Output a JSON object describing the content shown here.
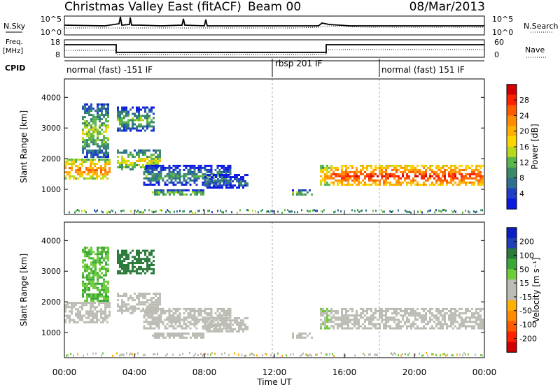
{
  "header": {
    "station": "Christmas Valley East (fitACF)",
    "beam": "Beam 00",
    "date": "08/Mar/2013"
  },
  "noise_panel": {
    "left_label": "N.Sky",
    "left_ticks": [
      "10^5",
      "10^0"
    ],
    "right_label": "N.Search",
    "right_ticks": [
      "10^5",
      "10^0"
    ]
  },
  "freq_panel": {
    "left_label_1": "Freq.",
    "left_label_2": "[MHz]",
    "left_ticks": [
      "18",
      "8"
    ],
    "right_label": "Nave",
    "right_ticks": [
      "60",
      "0"
    ]
  },
  "cpid": {
    "label": "CPID",
    "segments": [
      {
        "text": "normal (fast) -151 IF",
        "start_hour": 0
      },
      {
        "text": "rbsp 201 IF",
        "start_hour": 12
      },
      {
        "text": "normal (fast) 151 IF",
        "start_hour": 18
      }
    ]
  },
  "power_panel": {
    "ylabel": "Slant Range [km]",
    "cbar_label": "Power [dB]",
    "cbar_ticks": [
      "28",
      "24",
      "20",
      "16",
      "12",
      "8",
      "4"
    ],
    "cbar_colors": [
      "#d00000",
      "#ff2000",
      "#ff5a00",
      "#ff8c00",
      "#ffb000",
      "#ffd400",
      "#b8d81c",
      "#5ab64a",
      "#3a8a6a",
      "#2f6f8f",
      "#1e3fc8",
      "#0b18e0"
    ]
  },
  "velocity_panel": {
    "ylabel": "Slant Range [km]",
    "cbar_label": "Velocity [m s⁻¹]",
    "cbar_ticks": [
      "200",
      "100",
      "50",
      "15",
      "-15",
      "-50",
      "-100",
      "-200"
    ],
    "cbar_colors": [
      "#0a1ec8",
      "#1f3fb8",
      "#2a7a3a",
      "#3ca838",
      "#6ecb3a",
      "#bcbcb4",
      "#bcbcb4",
      "#ffb000",
      "#ff8c00",
      "#ff5a00",
      "#ff2000",
      "#d00000"
    ]
  },
  "xaxis": {
    "label": "Time UT",
    "ticks": [
      "00:00",
      "04:00",
      "08:00",
      "12:00",
      "16:00",
      "20:00",
      "00:00"
    ]
  },
  "chart_data": {
    "type": "heatmap",
    "title": "Christmas Valley East (fitACF) Beam 00 08/Mar/2013",
    "xlabel": "Time UT",
    "ylabel": "Slant Range [km]",
    "xlim_hours": [
      0,
      24
    ],
    "ylim_km": [
      180,
      4600
    ],
    "yticks_km": [
      1000,
      2000,
      3000,
      4000
    ],
    "power_scale_db": [
      0,
      30
    ],
    "velocity_scale_ms": [
      -250,
      250
    ],
    "frequency_mhz_segments": [
      {
        "start_hour": 0,
        "end_hour": 3,
        "freq_mhz": 16
      },
      {
        "start_hour": 3,
        "end_hour": 15,
        "freq_mhz": 10.5
      },
      {
        "start_hour": 15,
        "end_hour": 24,
        "freq_mhz": 16
      }
    ],
    "echo_regions": [
      {
        "t0": 0.0,
        "t1": 2.6,
        "r0": 1300,
        "r1": 2000,
        "power_db": 22,
        "velocity": -5
      },
      {
        "t0": 1.0,
        "t1": 2.6,
        "r0": 2000,
        "r1": 3800,
        "power_db": 14,
        "velocity": 80
      },
      {
        "t0": 3.0,
        "t1": 5.5,
        "r0": 1600,
        "r1": 2300,
        "power_db": 16,
        "velocity": -5
      },
      {
        "t0": 3.0,
        "t1": 5.2,
        "r0": 2900,
        "r1": 3700,
        "power_db": 12,
        "velocity": 150
      },
      {
        "t0": 4.5,
        "t1": 9.5,
        "r0": 1100,
        "r1": 1800,
        "power_db": 10,
        "velocity": -10
      },
      {
        "t0": 5.0,
        "t1": 8.0,
        "r0": 800,
        "r1": 1000,
        "power_db": 14,
        "velocity": -10
      },
      {
        "t0": 8.0,
        "t1": 10.5,
        "r0": 1000,
        "r1": 1500,
        "power_db": 8,
        "velocity": -10
      },
      {
        "t0": 13.0,
        "t1": 14.2,
        "r0": 800,
        "r1": 1000,
        "power_db": 14,
        "velocity": -10
      },
      {
        "t0": 14.6,
        "t1": 15.2,
        "r0": 1100,
        "r1": 1800,
        "power_db": 20,
        "velocity": 40
      },
      {
        "t0": 15.2,
        "t1": 24.0,
        "r0": 1100,
        "r1": 1800,
        "power_db": 26,
        "velocity": -5
      }
    ]
  }
}
